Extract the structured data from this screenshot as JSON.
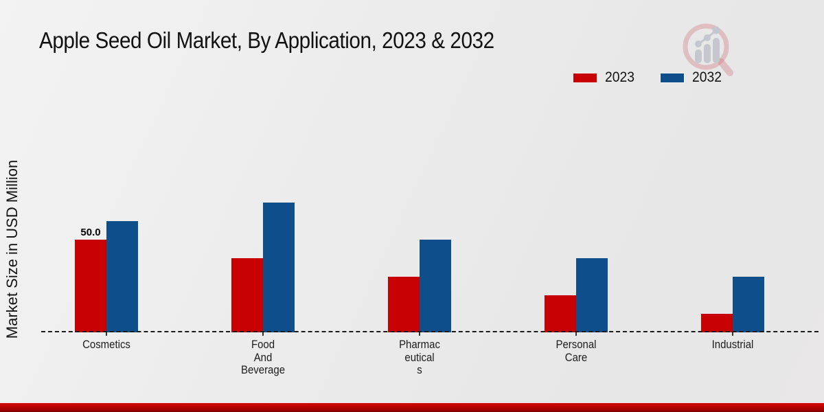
{
  "header": {
    "title": "Apple Seed Oil Market, By Application, 2023 & 2032"
  },
  "axes": {
    "ylabel": "Market Size in USD Million"
  },
  "legend": {
    "items": [
      {
        "label": "2023",
        "color": "#c80202"
      },
      {
        "label": "2032",
        "color": "#0d4e8b"
      }
    ]
  },
  "watermark": {
    "icon": "bar-chart-magnifier-logo",
    "circle_color": "#c9545e",
    "bars_color": "#bfc2c9"
  },
  "footer": {
    "bar_color": "#bb0000"
  },
  "chart_data": {
    "type": "bar",
    "title": "Apple Seed Oil Market, By Application, 2023 & 2032",
    "xlabel": "",
    "ylabel": "Market Size in USD Million",
    "categories": [
      "Cosmetics",
      "Food And Beverage",
      "Pharmaceuticals",
      "Personal Care",
      "Industrial"
    ],
    "category_label_lines": [
      [
        "Cosmetics"
      ],
      [
        "Food",
        "And",
        "Beverage"
      ],
      [
        "Pharmac",
        "eutical",
        "s"
      ],
      [
        "Personal",
        "Care"
      ],
      [
        "Industrial"
      ]
    ],
    "series": [
      {
        "name": "2023",
        "color": "#c80202",
        "values": [
          50,
          40,
          30,
          20,
          10
        ]
      },
      {
        "name": "2032",
        "color": "#0d4e8b",
        "values": [
          60,
          70,
          50,
          40,
          30
        ]
      }
    ],
    "data_labels": [
      {
        "series_index": 0,
        "category_index": 0,
        "text": "50.0"
      }
    ],
    "ylim": [
      0,
      120
    ],
    "grid": false,
    "baseline_style": "dashed",
    "legend_position": "top-right"
  }
}
